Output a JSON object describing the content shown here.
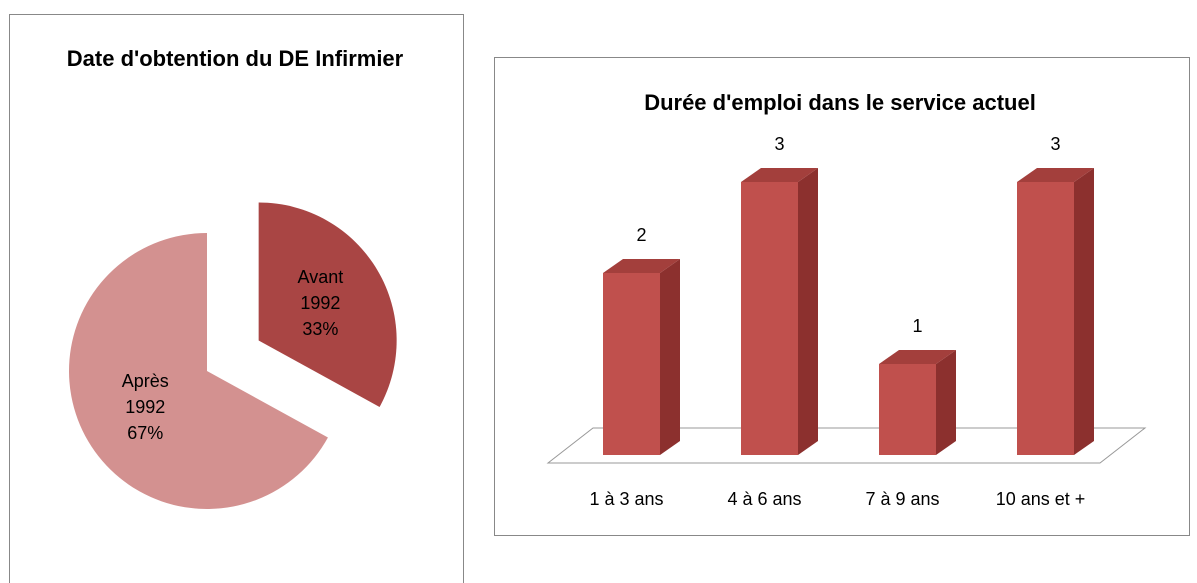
{
  "chart_data": [
    {
      "type": "pie",
      "title": "Date d'obtention du DE Infirmier",
      "categories": [
        "Avant 1992",
        "Après 1992"
      ],
      "values": [
        33,
        67
      ],
      "value_labels": [
        "33%",
        "67%"
      ],
      "colors": [
        "#a94544",
        "#d39190"
      ]
    },
    {
      "type": "bar3d",
      "title": "Durée d'emploi dans le service actuel",
      "categories": [
        "1 à 3 ans",
        "4 à 6 ans",
        "7 à 9 ans",
        "10 ans et +"
      ],
      "values": [
        2,
        3,
        1,
        3
      ],
      "color": "#c0504d"
    }
  ]
}
